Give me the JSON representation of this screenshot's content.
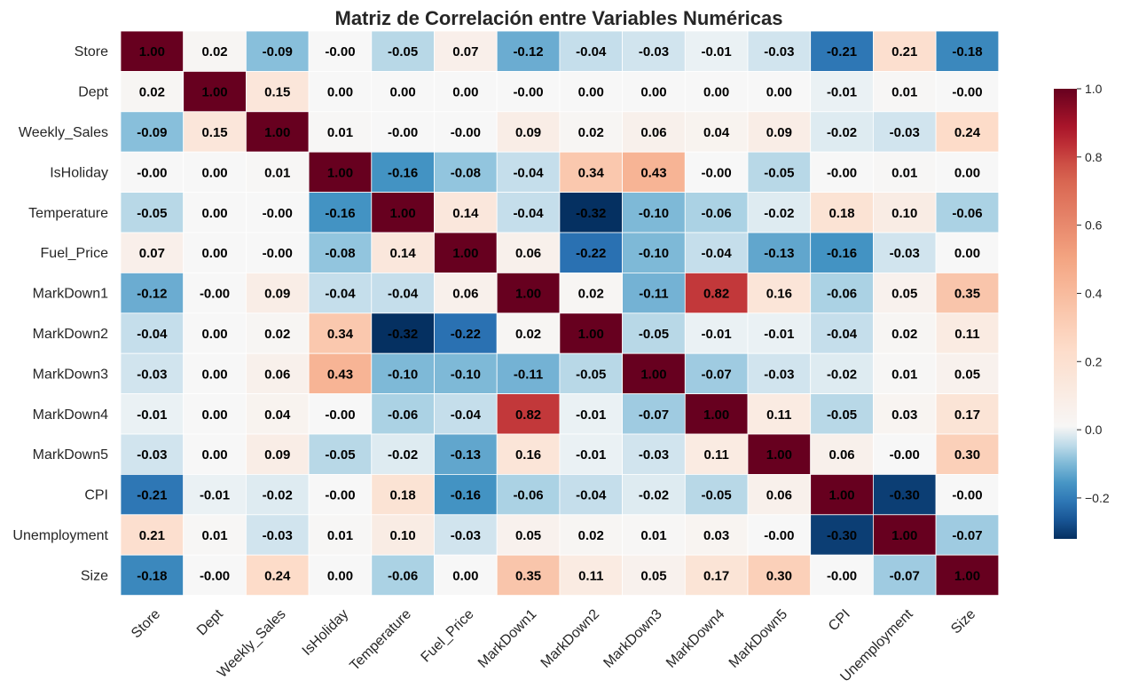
{
  "chart_data": {
    "type": "heatmap",
    "title": "Matriz de Correlación entre Variables Numéricas",
    "rows": [
      "Store",
      "Dept",
      "Weekly_Sales",
      "IsHoliday",
      "Temperature",
      "Fuel_Price",
      "MarkDown1",
      "MarkDown2",
      "MarkDown3",
      "MarkDown4",
      "MarkDown5",
      "CPI",
      "Unemployment",
      "Size"
    ],
    "columns": [
      "Store",
      "Dept",
      "Weekly_Sales",
      "IsHoliday",
      "Temperature",
      "Fuel_Price",
      "MarkDown1",
      "MarkDown2",
      "MarkDown3",
      "MarkDown4",
      "MarkDown5",
      "CPI",
      "Unemployment",
      "Size"
    ],
    "labels": [
      [
        "1.00",
        "0.02",
        "-0.09",
        "-0.00",
        "-0.05",
        "0.07",
        "-0.12",
        "-0.04",
        "-0.03",
        "-0.01",
        "-0.03",
        "-0.21",
        "0.21",
        "-0.18"
      ],
      [
        "0.02",
        "1.00",
        "0.15",
        "0.00",
        "0.00",
        "0.00",
        "-0.00",
        "0.00",
        "0.00",
        "0.00",
        "0.00",
        "-0.01",
        "0.01",
        "-0.00"
      ],
      [
        "-0.09",
        "0.15",
        "1.00",
        "0.01",
        "-0.00",
        "-0.00",
        "0.09",
        "0.02",
        "0.06",
        "0.04",
        "0.09",
        "-0.02",
        "-0.03",
        "0.24"
      ],
      [
        "-0.00",
        "0.00",
        "0.01",
        "1.00",
        "-0.16",
        "-0.08",
        "-0.04",
        "0.34",
        "0.43",
        "-0.00",
        "-0.05",
        "-0.00",
        "0.01",
        "0.00"
      ],
      [
        "-0.05",
        "0.00",
        "-0.00",
        "-0.16",
        "1.00",
        "0.14",
        "-0.04",
        "-0.32",
        "-0.10",
        "-0.06",
        "-0.02",
        "0.18",
        "0.10",
        "-0.06"
      ],
      [
        "0.07",
        "0.00",
        "-0.00",
        "-0.08",
        "0.14",
        "1.00",
        "0.06",
        "-0.22",
        "-0.10",
        "-0.04",
        "-0.13",
        "-0.16",
        "-0.03",
        "0.00"
      ],
      [
        "-0.12",
        "-0.00",
        "0.09",
        "-0.04",
        "-0.04",
        "0.06",
        "1.00",
        "0.02",
        "-0.11",
        "0.82",
        "0.16",
        "-0.06",
        "0.05",
        "0.35"
      ],
      [
        "-0.04",
        "0.00",
        "0.02",
        "0.34",
        "-0.32",
        "-0.22",
        "0.02",
        "1.00",
        "-0.05",
        "-0.01",
        "-0.01",
        "-0.04",
        "0.02",
        "0.11"
      ],
      [
        "-0.03",
        "0.00",
        "0.06",
        "0.43",
        "-0.10",
        "-0.10",
        "-0.11",
        "-0.05",
        "1.00",
        "-0.07",
        "-0.03",
        "-0.02",
        "0.01",
        "0.05"
      ],
      [
        "-0.01",
        "0.00",
        "0.04",
        "-0.00",
        "-0.06",
        "-0.04",
        "0.82",
        "-0.01",
        "-0.07",
        "1.00",
        "0.11",
        "-0.05",
        "0.03",
        "0.17"
      ],
      [
        "-0.03",
        "0.00",
        "0.09",
        "-0.05",
        "-0.02",
        "-0.13",
        "0.16",
        "-0.01",
        "-0.03",
        "0.11",
        "1.00",
        "0.06",
        "-0.00",
        "0.30"
      ],
      [
        "-0.21",
        "-0.01",
        "-0.02",
        "-0.00",
        "0.18",
        "-0.16",
        "-0.06",
        "-0.04",
        "-0.02",
        "-0.05",
        "0.06",
        "1.00",
        "-0.30",
        "-0.00"
      ],
      [
        "0.21",
        "0.01",
        "-0.03",
        "0.01",
        "0.10",
        "-0.03",
        "0.05",
        "0.02",
        "0.01",
        "0.03",
        "-0.00",
        "-0.30",
        "1.00",
        "-0.07"
      ],
      [
        "-0.18",
        "-0.00",
        "0.24",
        "0.00",
        "-0.06",
        "0.00",
        "0.35",
        "0.11",
        "0.05",
        "0.17",
        "0.30",
        "-0.00",
        "-0.07",
        "1.00"
      ]
    ],
    "colorbar": {
      "min": -0.32,
      "max": 1.0,
      "ticks": [
        "1.0",
        "0.8",
        "0.6",
        "0.4",
        "0.2",
        "0.0",
        "−0.2"
      ],
      "tick_values": [
        1.0,
        0.8,
        0.6,
        0.4,
        0.2,
        0.0,
        -0.2
      ]
    },
    "colormap": "RdBu_r",
    "grid": true,
    "legend": "colorbar-right"
  }
}
